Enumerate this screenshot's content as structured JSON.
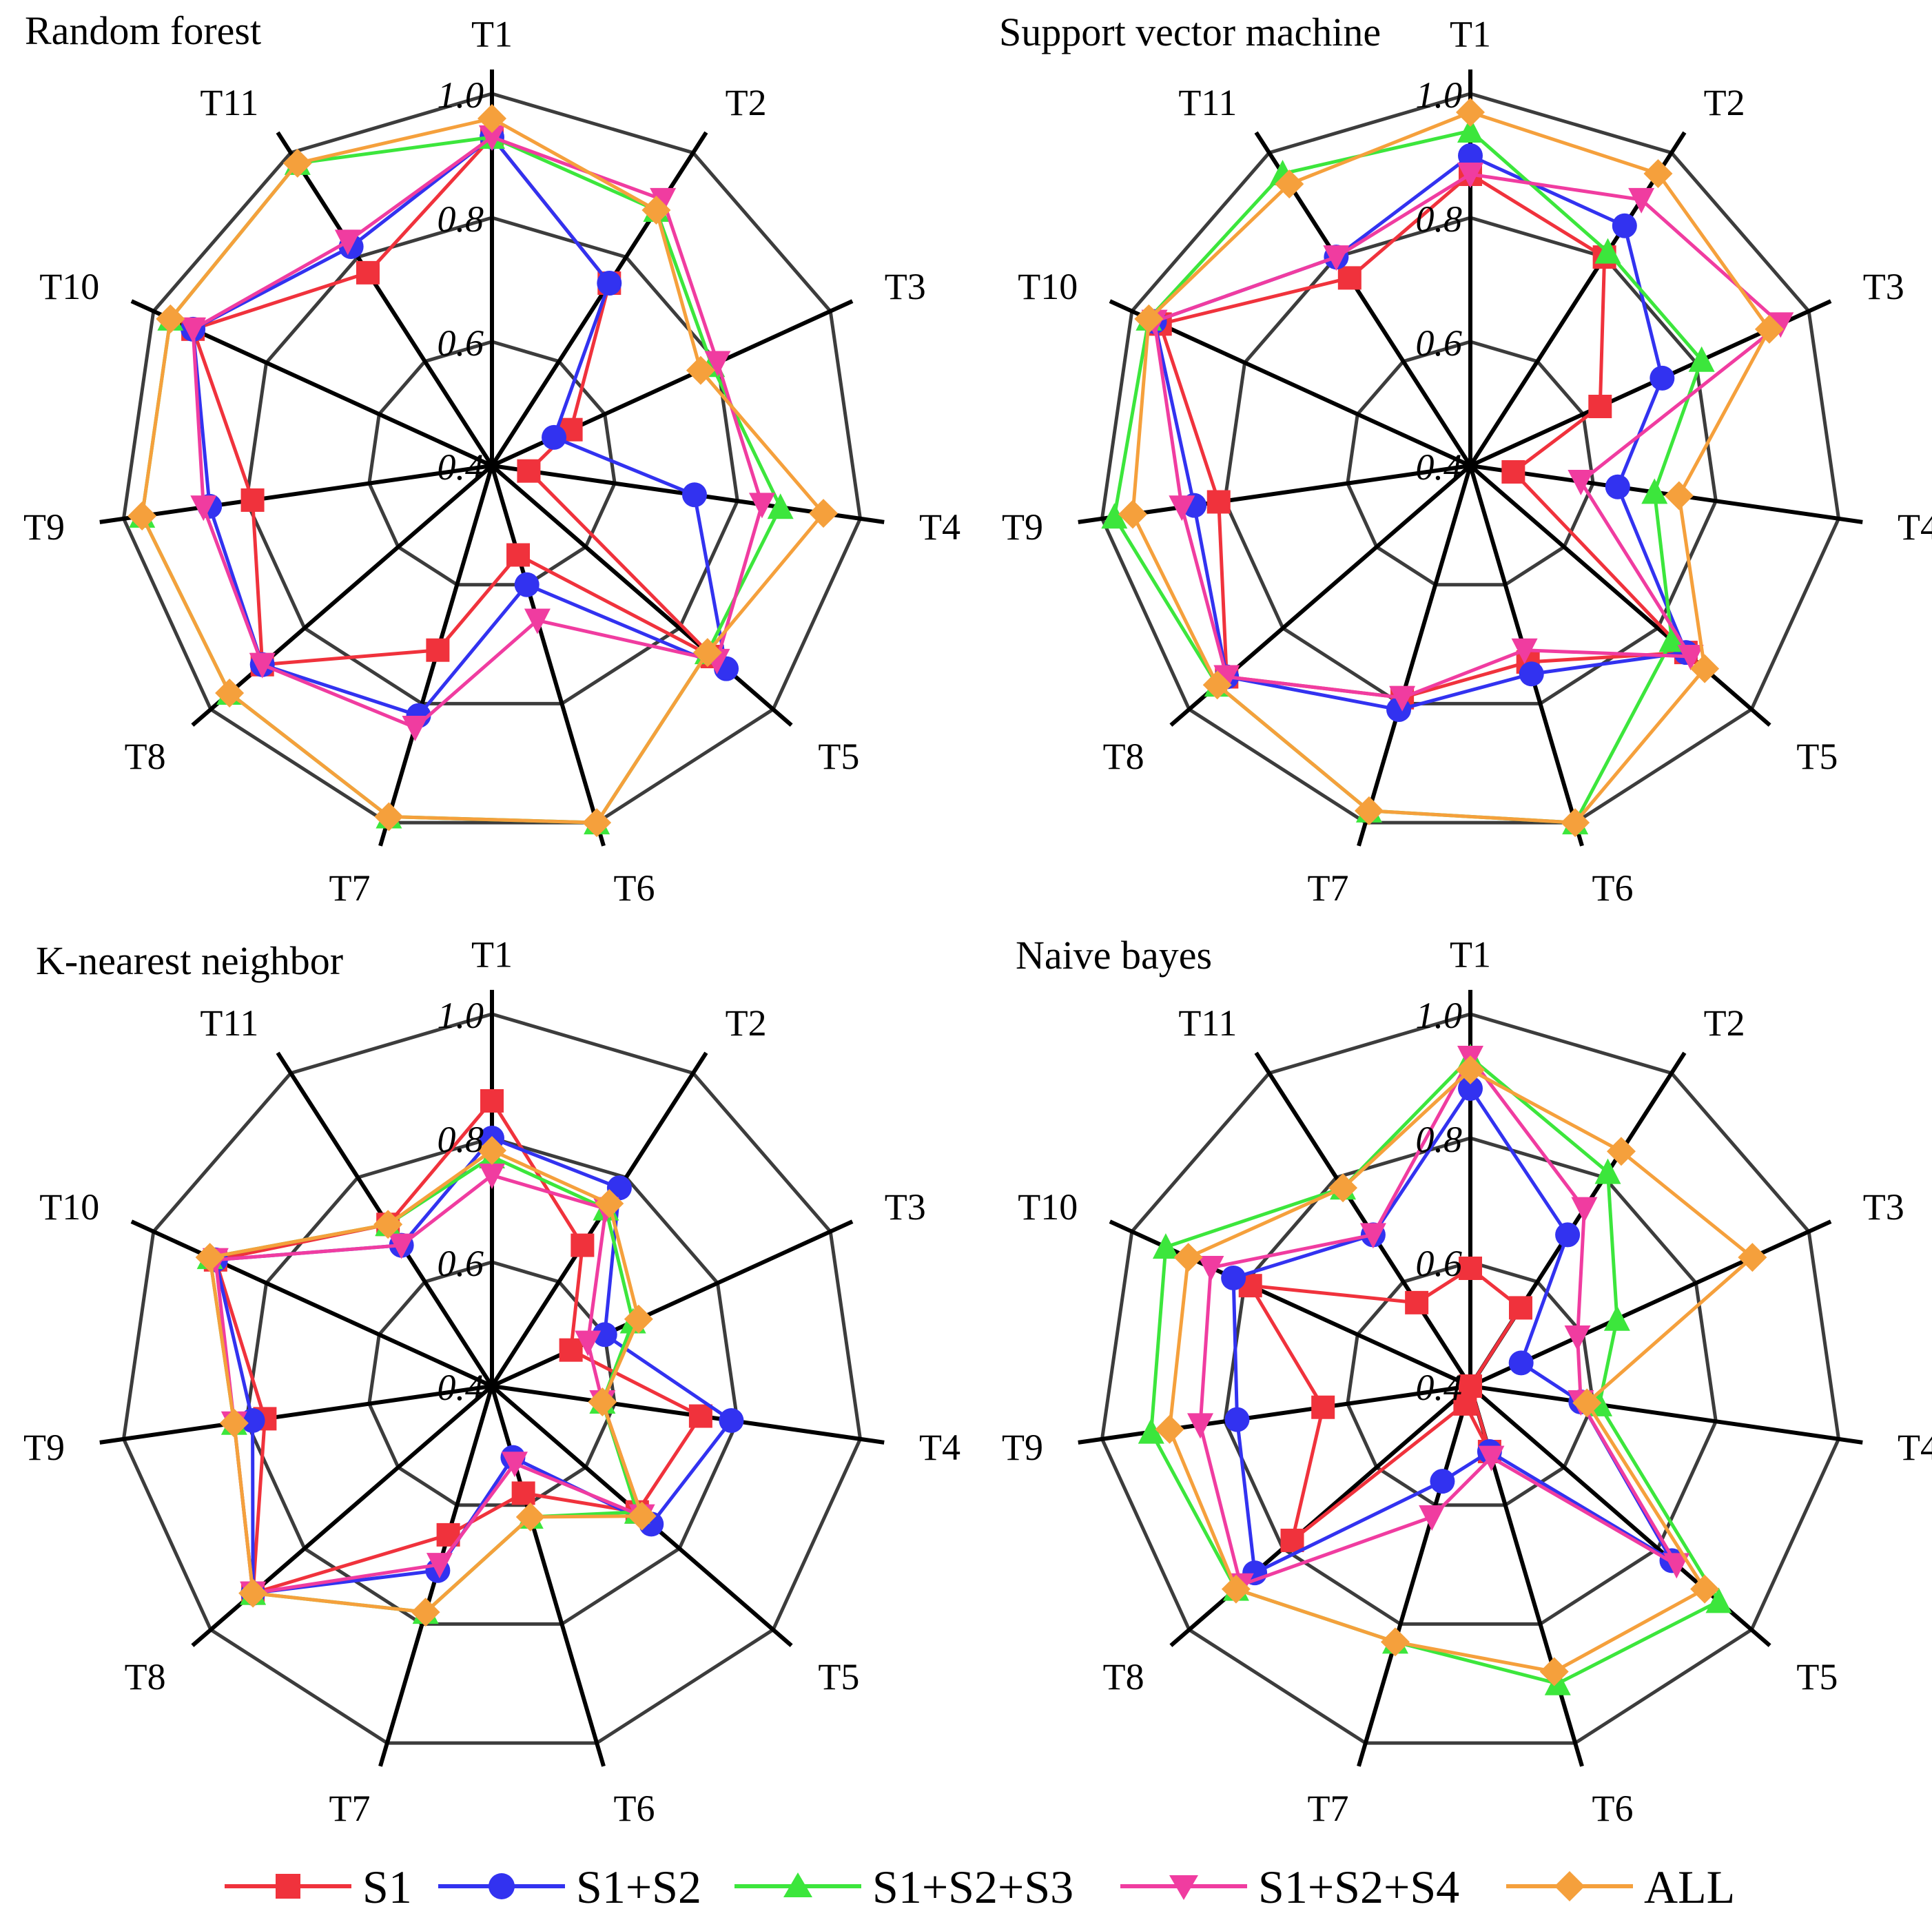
{
  "series_styles": [
    {
      "name": "S1",
      "color": "#f0323c",
      "marker": "square"
    },
    {
      "name": "S1+S2",
      "color": "#3232f0",
      "marker": "circle"
    },
    {
      "name": "S1+S2+S3",
      "color": "#3ce63c",
      "marker": "triangle-up"
    },
    {
      "name": "S1+S2+S4",
      "color": "#f03ca0",
      "marker": "triangle-down"
    },
    {
      "name": "ALL",
      "color": "#f5a03c",
      "marker": "diamond"
    }
  ],
  "grid_color": "#3c3c3c",
  "chart_data": [
    {
      "type": "radar",
      "title": "Random forest",
      "categories": [
        "T1",
        "T2",
        "T3",
        "T4",
        "T5",
        "T6",
        "T7",
        "T8",
        "T9",
        "T10",
        "T11"
      ],
      "rlim": [
        0.4,
        1.0
      ],
      "ticks": [
        0.4,
        0.6,
        0.8,
        1.0
      ],
      "tick_labels": [
        "0.4",
        "0.6",
        "0.8",
        "1.0"
      ],
      "series": [
        {
          "name": "S1",
          "values": [
            0.93,
            0.75,
            0.54,
            0.46,
            0.87,
            0.55,
            0.71,
            0.89,
            0.79,
            0.93,
            0.77
          ]
        },
        {
          "name": "S1+S2",
          "values": [
            0.93,
            0.75,
            0.51,
            0.73,
            0.9,
            0.6,
            0.82,
            0.89,
            0.86,
            0.93,
            0.82
          ]
        },
        {
          "name": "S1+S2+S3",
          "values": [
            0.93,
            0.89,
            0.79,
            0.87,
            0.86,
            1.0,
            0.99,
            0.96,
            0.97,
            0.97,
            0.98
          ]
        },
        {
          "name": "S1+S2+S4",
          "values": [
            0.93,
            0.91,
            0.8,
            0.84,
            0.88,
            0.66,
            0.84,
            0.89,
            0.87,
            0.93,
            0.83
          ]
        },
        {
          "name": "ALL",
          "values": [
            0.96,
            0.89,
            0.77,
            0.94,
            0.86,
            1.0,
            0.99,
            0.96,
            0.97,
            0.97,
            0.98
          ]
        }
      ]
    },
    {
      "type": "radar",
      "title": "Support vector machine",
      "categories": [
        "T1",
        "T2",
        "T3",
        "T4",
        "T5",
        "T6",
        "T7",
        "T8",
        "T9",
        "T10",
        "T11"
      ],
      "rlim": [
        0.4,
        1.0
      ],
      "ticks": [
        0.4,
        0.6,
        0.8,
        1.0
      ],
      "tick_labels": [
        "0.4",
        "0.6",
        "0.8",
        "1.0"
      ],
      "series": [
        {
          "name": "S1",
          "values": [
            0.87,
            0.8,
            0.63,
            0.47,
            0.86,
            0.73,
            0.79,
            0.92,
            0.81,
            0.95,
            0.76
          ]
        },
        {
          "name": "S1+S2",
          "values": [
            0.9,
            0.86,
            0.74,
            0.64,
            0.86,
            0.75,
            0.81,
            0.92,
            0.85,
            0.96,
            0.8
          ]
        },
        {
          "name": "S1+S2+S3",
          "values": [
            0.94,
            0.81,
            0.81,
            0.7,
            0.83,
            1.0,
            0.98,
            0.94,
            0.98,
            0.97,
            0.96
          ]
        },
        {
          "name": "S1+S2+S4",
          "values": [
            0.87,
            0.91,
            0.95,
            0.58,
            0.87,
            0.71,
            0.79,
            0.92,
            0.87,
            0.96,
            0.8
          ]
        },
        {
          "name": "ALL",
          "values": [
            0.97,
            0.96,
            0.93,
            0.74,
            0.9,
            1.0,
            0.98,
            0.94,
            0.95,
            0.97,
            0.94
          ]
        }
      ]
    },
    {
      "type": "radar",
      "title": "K-nearest neighbor",
      "categories": [
        "T1",
        "T2",
        "T3",
        "T4",
        "T5",
        "T6",
        "T7",
        "T8",
        "T9",
        "T10",
        "T11"
      ],
      "rlim": [
        0.4,
        1.0
      ],
      "ticks": [
        0.4,
        0.6,
        0.8,
        1.0
      ],
      "tick_labels": [
        "0.4",
        "0.6",
        "0.8",
        "1.0"
      ],
      "series": [
        {
          "name": "S1",
          "values": [
            0.86,
            0.67,
            0.54,
            0.74,
            0.71,
            0.58,
            0.65,
            0.91,
            0.77,
            0.89,
            0.71
          ]
        },
        {
          "name": "S1+S2",
          "values": [
            0.8,
            0.78,
            0.6,
            0.79,
            0.74,
            0.52,
            0.71,
            0.91,
            0.79,
            0.89,
            0.67
          ]
        },
        {
          "name": "S1+S2+S3",
          "values": [
            0.77,
            0.74,
            0.65,
            0.58,
            0.71,
            0.62,
            0.78,
            0.91,
            0.82,
            0.9,
            0.71
          ]
        },
        {
          "name": "S1+S2+S4",
          "values": [
            0.74,
            0.74,
            0.57,
            0.58,
            0.72,
            0.53,
            0.7,
            0.91,
            0.82,
            0.89,
            0.67
          ]
        },
        {
          "name": "ALL",
          "values": [
            0.78,
            0.75,
            0.66,
            0.58,
            0.72,
            0.62,
            0.78,
            0.91,
            0.82,
            0.9,
            0.71
          ]
        }
      ]
    },
    {
      "type": "radar",
      "title": "Naive bayes",
      "categories": [
        "T1",
        "T2",
        "T3",
        "T4",
        "T5",
        "T6",
        "T7",
        "T8",
        "T9",
        "T10",
        "T11"
      ],
      "rlim": [
        0.4,
        1.0
      ],
      "ticks": [
        0.4,
        0.6,
        0.8,
        1.0
      ],
      "tick_labels": [
        "0.4",
        "0.6",
        "0.8",
        "1.0"
      ],
      "series": [
        {
          "name": "S1",
          "values": [
            0.59,
            0.55,
            0.4,
            0.4,
            0.4,
            0.51,
            0.43,
            0.78,
            0.64,
            0.79,
            0.56
          ]
        },
        {
          "name": "S1+S2",
          "values": [
            0.88,
            0.69,
            0.49,
            0.58,
            0.83,
            0.51,
            0.56,
            0.86,
            0.78,
            0.82,
            0.69
          ]
        },
        {
          "name": "S1+S2+S3",
          "values": [
            0.93,
            0.81,
            0.66,
            0.61,
            0.93,
            0.9,
            0.83,
            0.9,
            0.92,
            0.94,
            0.78
          ]
        },
        {
          "name": "S1+S2+S4",
          "values": [
            0.93,
            0.74,
            0.59,
            0.58,
            0.84,
            0.52,
            0.62,
            0.89,
            0.84,
            0.86,
            0.69
          ]
        },
        {
          "name": "ALL",
          "values": [
            0.91,
            0.85,
            0.9,
            0.59,
            0.9,
            0.88,
            0.83,
            0.9,
            0.89,
            0.9,
            0.78
          ]
        }
      ]
    }
  ]
}
